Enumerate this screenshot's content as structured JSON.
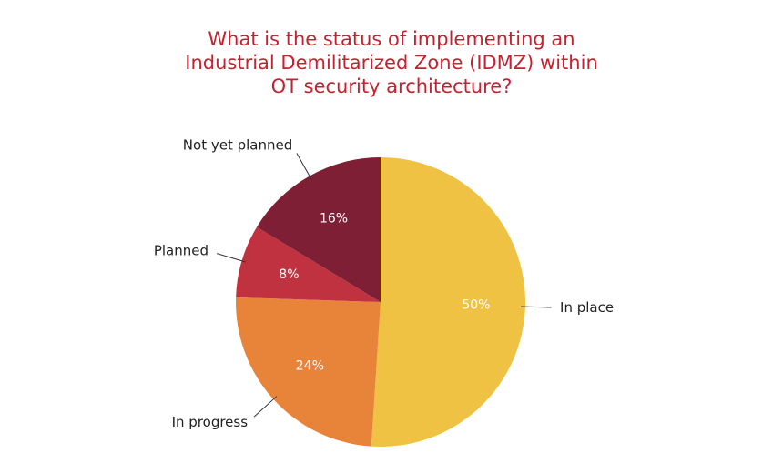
{
  "chart_data": {
    "type": "pie",
    "title": "What is the status of implementing an Industrial Demilitarized Zone (IDMZ) within OT security architecture?",
    "categories": [
      "In place",
      "In progress",
      "Planned",
      "Not yet planned"
    ],
    "values": [
      50,
      24,
      8,
      16
    ],
    "value_labels": [
      "50%",
      "24%",
      "8%",
      "16%"
    ],
    "colors": [
      "#f0c244",
      "#e8843a",
      "#c0323f",
      "#7e1f35"
    ]
  }
}
